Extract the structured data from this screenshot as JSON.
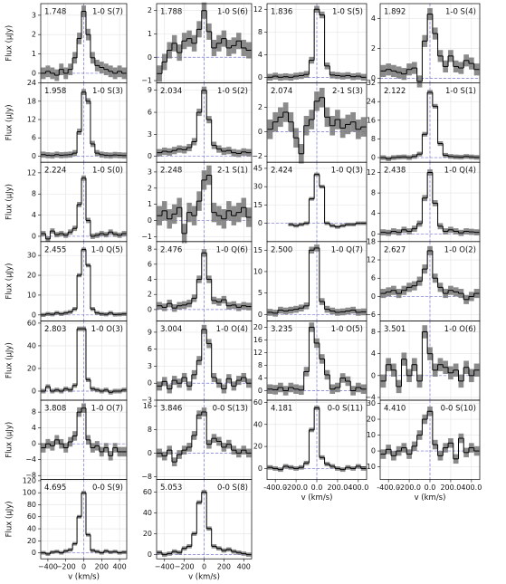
{
  "shared": {
    "x": [
      -450,
      -400,
      -350,
      -300,
      -250,
      -200,
      -150,
      -100,
      -50,
      0,
      50,
      100,
      150,
      200,
      250,
      300,
      350,
      400,
      450
    ],
    "xlim": [
      -480,
      480
    ],
    "xgrid": [
      -400,
      -200,
      0,
      200,
      400
    ]
  },
  "chart_data": [
    {
      "type": "line",
      "wavelength": "1.748",
      "line": "1-0 S(7)",
      "ylabel": "Flux (μJy)",
      "ylim": [
        -0.5,
        3.6
      ],
      "yticks": [
        0,
        1,
        2,
        3
      ],
      "error": 0.3,
      "values": [
        0,
        0.1,
        0,
        -0.1,
        0.2,
        0,
        0.2,
        0.8,
        1.8,
        3.2,
        2,
        0.8,
        0.4,
        0.3,
        0.2,
        0.1,
        0,
        0.1,
        0
      ]
    },
    {
      "type": "line",
      "wavelength": "1.788",
      "line": "1-0 S(6)",
      "ylim": [
        -1.1,
        2.3
      ],
      "yticks": [
        {
          "value": -1,
          "label": "−1"
        },
        0,
        1,
        2
      ],
      "error": 0.35,
      "values": [
        -0.7,
        -0.2,
        0.3,
        0.6,
        0.2,
        0.7,
        0.8,
        0.6,
        1.2,
        2.0,
        1.1,
        0.4,
        0.6,
        0.8,
        0.4,
        0.5,
        0.7,
        0.4,
        0.3
      ]
    },
    {
      "type": "line",
      "wavelength": "1.836",
      "line": "1-0 S(5)",
      "ylim": [
        -1,
        13
      ],
      "yticks": [
        0,
        4,
        8,
        12
      ],
      "error": 0.6,
      "values": [
        0,
        0.2,
        0,
        0.1,
        0,
        0.2,
        0.3,
        0.5,
        3,
        12,
        11,
        2,
        0.4,
        0.3,
        0.2,
        0.3,
        0.1,
        0.2,
        0
      ]
    },
    {
      "type": "line",
      "wavelength": "1.892",
      "line": "1-0 S(4)",
      "ylim": [
        -0.3,
        5
      ],
      "yticks": [
        0,
        2,
        4
      ],
      "error": 0.4,
      "values": [
        0.5,
        0.6,
        0.5,
        0.4,
        0.3,
        0.6,
        0.7,
        -0.2,
        2.5,
        4.3,
        3,
        1.5,
        0.8,
        1.5,
        0.8,
        0.7,
        1.2,
        1.0,
        0.6
      ]
    },
    {
      "type": "line",
      "wavelength": "1.958",
      "line": "1-0 S(3)",
      "ylabel": "Flux (μJy)",
      "ylim": [
        -2,
        24
      ],
      "yticks": [
        0,
        6,
        12,
        18,
        24
      ],
      "error": 1,
      "values": [
        0.5,
        0.3,
        0.2,
        0.5,
        0.3,
        0.4,
        0.5,
        1,
        8,
        21,
        18,
        4,
        1,
        0.5,
        0.3,
        0.2,
        0.4,
        0.3,
        0.2
      ]
    },
    {
      "type": "line",
      "wavelength": "2.034",
      "line": "1-0 S(2)",
      "ylim": [
        -0.8,
        10
      ],
      "yticks": [
        0,
        3,
        6,
        9
      ],
      "error": 0.5,
      "values": [
        0.5,
        0.7,
        0.6,
        0.8,
        1,
        0.9,
        1.2,
        2,
        6,
        9,
        5,
        1.5,
        1,
        0.7,
        0.8,
        0.5,
        0.4,
        0.6,
        0.5
      ]
    },
    {
      "type": "line",
      "wavelength": "2.074",
      "line": "2-1 S(3)",
      "ylim": [
        -2.5,
        4
      ],
      "yticks": [
        {
          "value": -2,
          "label": "−2"
        },
        0,
        2
      ],
      "error": 0.8,
      "values": [
        0.2,
        0.8,
        1.2,
        1.6,
        0.8,
        -0.5,
        -1.8,
        0.5,
        1,
        2.5,
        2.8,
        1.2,
        0.5,
        1.0,
        0.3,
        0.6,
        0.8,
        0.2,
        0.4
      ]
    },
    {
      "type": "line",
      "wavelength": "2.122",
      "line": "1-0 S(1)",
      "ylim": [
        -2,
        32
      ],
      "yticks": [
        0,
        8,
        16,
        24,
        32
      ],
      "error": 1,
      "values": [
        0,
        -0.5,
        0,
        0.2,
        0.3,
        0,
        0.5,
        1.5,
        10,
        28,
        22,
        6,
        1,
        0.5,
        0.3,
        0.2,
        0.5,
        0.3,
        0.1
      ]
    },
    {
      "type": "line",
      "wavelength": "2.224",
      "line": "1-0 S(0)",
      "ylabel": "Flux (μJy)",
      "ylim": [
        -1,
        14
      ],
      "yticks": [
        0,
        4,
        8,
        12
      ],
      "error": 0.5,
      "values": [
        0.5,
        -0.5,
        1,
        0.3,
        0.5,
        0.2,
        0.8,
        1.5,
        6,
        11,
        3,
        0,
        0.2,
        0.5,
        0.3,
        0.8,
        0.4,
        0.2,
        0.5
      ]
    },
    {
      "type": "line",
      "wavelength": "2.248",
      "line": "2-1 S(1)",
      "ylim": [
        -1.3,
        3.6
      ],
      "yticks": [
        {
          "value": -1,
          "label": "−1"
        },
        0,
        1,
        2,
        3
      ],
      "error": 0.6,
      "values": [
        0.3,
        0.6,
        0.1,
        0.4,
        0.8,
        -0.8,
        0.5,
        0.3,
        1.2,
        2.5,
        2.8,
        0.5,
        0.3,
        0.1,
        0.6,
        0.3,
        0.5,
        0.8,
        0.2
      ]
    },
    {
      "type": "line",
      "wavelength": "2.424",
      "line": "1-0 Q(3)",
      "ylim": [
        -15,
        50
      ],
      "yticks": [
        0,
        15,
        30,
        45
      ],
      "error": 1.5,
      "values": [
        null,
        null,
        null,
        null,
        -1,
        -2,
        -1,
        0,
        20,
        40,
        30,
        0,
        -2,
        -3,
        -2,
        -1,
        -1,
        0,
        0
      ]
    },
    {
      "type": "line",
      "wavelength": "2.438",
      "line": "1-0 Q(4)",
      "ylim": [
        -1.5,
        14
      ],
      "yticks": [
        0,
        4,
        8,
        12
      ],
      "error": 0.6,
      "values": [
        0.3,
        0.2,
        0.5,
        0.3,
        0.8,
        0.5,
        1,
        2,
        7,
        12,
        6,
        1.5,
        0.5,
        0.8,
        0.5,
        0.2,
        0.5,
        0.4,
        0.3
      ]
    },
    {
      "type": "line",
      "wavelength": "2.455",
      "line": "1-0 Q(5)",
      "ylabel": "Flux (μJy)",
      "ylim": [
        -3,
        37
      ],
      "yticks": [
        0,
        10,
        20,
        30
      ],
      "error": 1,
      "values": [
        0,
        0.5,
        0.3,
        1,
        0.5,
        1,
        1.5,
        3,
        20,
        33,
        25,
        3,
        1,
        0.5,
        0.3,
        1,
        0.2,
        0.3,
        0.5
      ]
    },
    {
      "type": "line",
      "wavelength": "2.476",
      "line": "1-0 Q(6)",
      "ylim": [
        -1.5,
        9
      ],
      "yticks": [
        0,
        2,
        4,
        6,
        8
      ],
      "error": 0.5,
      "values": [
        0.5,
        0.3,
        0.8,
        0.2,
        0.5,
        0.6,
        0.8,
        1.5,
        4,
        7.5,
        4,
        1.2,
        1.0,
        1.3,
        0.5,
        0.6,
        0.3,
        0.5,
        0.4
      ]
    },
    {
      "type": "line",
      "wavelength": "2.500",
      "line": "1-0 Q(7)",
      "ylim": [
        -1.5,
        17
      ],
      "yticks": [
        0,
        5,
        10,
        15
      ],
      "error": 0.8,
      "values": [
        0.5,
        0.3,
        1,
        0.8,
        1,
        1.2,
        1.5,
        2,
        15,
        15.5,
        3,
        1.2,
        0.8,
        0.5,
        0.6,
        0.8,
        1,
        0.5,
        0.6
      ]
    },
    {
      "type": "line",
      "wavelength": "2.627",
      "line": "1-0 O(2)",
      "ylim": [
        -8,
        18
      ],
      "yticks": [
        {
          "value": -6,
          "label": "−6"
        },
        0,
        6,
        12,
        18
      ],
      "error": 1.5,
      "values": [
        1,
        1.5,
        2,
        1,
        2,
        3,
        3.5,
        5,
        9,
        15,
        6,
        3,
        1,
        2,
        1.5,
        1,
        -1,
        0,
        1
      ]
    },
    {
      "type": "line",
      "wavelength": "2.803",
      "line": "1-0 O(3)",
      "ylabel": "Flux (μJy)",
      "ylim": [
        -8,
        62
      ],
      "yticks": [
        0,
        20,
        40,
        60
      ],
      "error": 2,
      "values": [
        0,
        4,
        0,
        1,
        0,
        2,
        1,
        5,
        55,
        55,
        10,
        2,
        1,
        0,
        1,
        -1,
        0,
        0,
        1
      ]
    },
    {
      "type": "line",
      "wavelength": "3.004",
      "line": "1-0 O(4)",
      "ylim": [
        -3,
        11
      ],
      "yticks": [
        {
          "value": -3,
          "label": "−3"
        },
        0,
        3,
        6,
        9
      ],
      "error": 0.8,
      "values": [
        -0.5,
        0.3,
        -1,
        0.5,
        0,
        1,
        -0.5,
        1.5,
        4,
        9.5,
        7,
        1,
        0,
        -1,
        0.8,
        -0.5,
        0.5,
        1,
        0
      ]
    },
    {
      "type": "line",
      "wavelength": "3.235",
      "line": "1-0 O(5)",
      "ylim": [
        -3,
        22
      ],
      "yticks": [
        0,
        4,
        8,
        12,
        16,
        20
      ],
      "error": 1.5,
      "values": [
        0.5,
        0.3,
        1,
        0,
        1,
        0.5,
        0.2,
        6,
        20,
        15,
        10,
        5,
        0.5,
        1,
        4,
        3,
        0,
        1,
        0.5
      ]
    },
    {
      "type": "line",
      "wavelength": "3.501",
      "line": "1-0 O(6)",
      "ylim": [
        -4.5,
        10
      ],
      "yticks": [
        {
          "value": -4,
          "label": "−4"
        },
        0,
        4,
        8
      ],
      "error": 1.2,
      "values": [
        -1,
        2,
        1,
        -2,
        3,
        0,
        2,
        -1,
        8,
        4,
        1,
        2,
        1.5,
        0.5,
        1,
        -1,
        1.5,
        0,
        1
      ]
    },
    {
      "type": "line",
      "wavelength": "3.808",
      "line": "1-0 O(7)",
      "ylabel": "Flux (μJy)",
      "ylim": [
        -9,
        11
      ],
      "yticks": [
        {
          "value": -8,
          "label": "−8"
        },
        {
          "value": -4,
          "label": "−4"
        },
        0,
        4,
        8
      ],
      "error": 1.2,
      "values": [
        -1,
        0,
        -0.5,
        1,
        0,
        -1,
        0.5,
        2,
        8,
        9,
        1,
        -1,
        -0.5,
        -2,
        -1,
        -3,
        -1,
        -2,
        -2
      ]
    },
    {
      "type": "line",
      "wavelength": "3.846",
      "line": "0-0 S(13)",
      "ylim": [
        -9,
        18
      ],
      "yticks": [
        {
          "value": -8,
          "label": "−8"
        },
        0,
        8,
        16
      ],
      "error": 1.5,
      "values": [
        0,
        -1,
        1,
        -3,
        -0.5,
        1,
        2,
        6,
        13,
        14,
        3,
        5,
        4,
        2,
        3,
        1,
        0,
        1,
        0
      ]
    },
    {
      "type": "line",
      "wavelength": "4.181",
      "line": "0-0 S(11)",
      "ylim": [
        -10,
        62
      ],
      "yticks": [
        0,
        20,
        40,
        60
      ],
      "error": 2,
      "values": [
        1,
        0,
        -1,
        2,
        1,
        0,
        1,
        5,
        35,
        55,
        10,
        4,
        2,
        0,
        -1,
        1,
        0,
        2,
        0
      ],
      "xlabel": "v (km/s)",
      "xticks": [
        {
          "value": -400,
          "label": "-400.0"
        },
        {
          "value": -200,
          "label": "-200.0"
        },
        {
          "value": 0,
          "label": "0.0"
        },
        {
          "value": 200,
          "label": "200.0"
        },
        {
          "value": 400,
          "label": "400.0"
        }
      ]
    },
    {
      "type": "line",
      "wavelength": "4.410",
      "line": "0-0 S(10)",
      "ylim": [
        -18,
        32
      ],
      "yticks": [
        {
          "value": -10,
          "label": "−10"
        },
        0,
        10,
        20,
        30
      ],
      "error": 3,
      "values": [
        -2,
        1,
        -3,
        0,
        2,
        -2,
        3,
        10,
        20,
        25,
        4,
        -3,
        2,
        5,
        -5,
        8,
        -1,
        2,
        0
      ],
      "xlabel": "v (km/s)",
      "xticks": [
        {
          "value": -400,
          "label": "-400.0"
        },
        {
          "value": -200,
          "label": "-200.0"
        },
        {
          "value": 0,
          "label": "0.0"
        },
        {
          "value": 200,
          "label": "200.0"
        },
        {
          "value": 400,
          "label": "400.0"
        }
      ]
    },
    {
      "type": "line",
      "wavelength": "4.695",
      "line": "0-0 S(9)",
      "ylabel": "Flux (μJy)",
      "ylim": [
        -10,
        122
      ],
      "yticks": [
        0,
        20,
        40,
        60,
        80,
        100,
        120
      ],
      "error": 3,
      "values": [
        0,
        -2,
        1,
        2,
        0,
        3,
        5,
        15,
        60,
        100,
        30,
        4,
        2,
        0,
        3,
        1,
        2,
        0,
        1
      ],
      "xlabel": "v (km/s)",
      "xticks": [
        {
          "value": -400,
          "label": "−400"
        },
        {
          "value": -200,
          "label": "−200"
        },
        0,
        200,
        400
      ]
    },
    {
      "type": "line",
      "wavelength": "5.053",
      "line": "0-0 S(8)",
      "ylim": [
        -4,
        72
      ],
      "yticks": [
        0,
        20,
        40,
        60
      ],
      "error": 2,
      "values": [
        2,
        0,
        1,
        3,
        2,
        6,
        8,
        20,
        50,
        60,
        25,
        8,
        6,
        4,
        5,
        3,
        2,
        1,
        0
      ],
      "xlabel": "v (km/s)",
      "xticks": [
        {
          "value": -400,
          "label": "−400"
        },
        {
          "value": -200,
          "label": "−200"
        },
        0,
        200,
        400
      ]
    }
  ]
}
